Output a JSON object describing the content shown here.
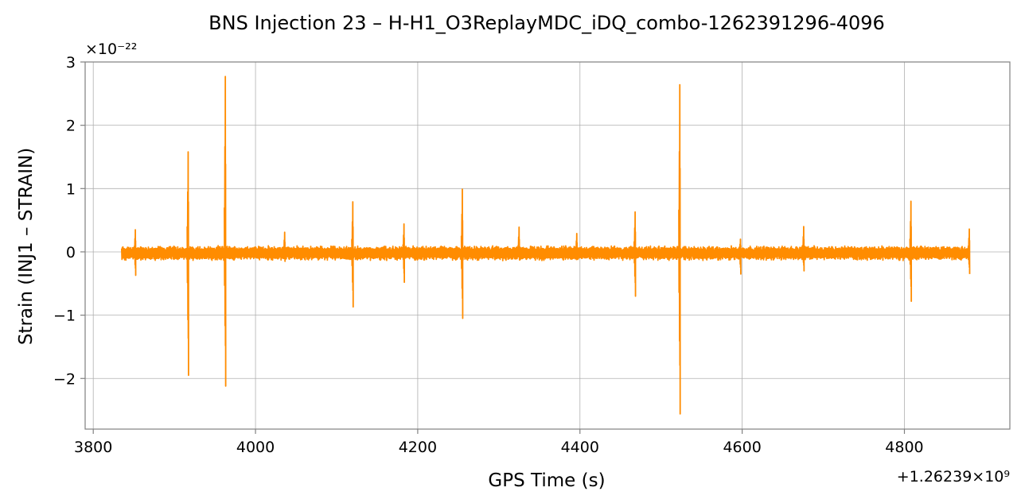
{
  "chart_data": {
    "type": "line",
    "title": "BNS Injection 23 – H-H1_O3ReplayMDC_iDQ_combo-1262391296-4096",
    "xlabel": "GPS Time (s)",
    "ylabel": "Strain (INJ1 – STRAIN)",
    "x_offset_label": "+1.26239×10⁹",
    "y_scale_label": "×10⁻²²",
    "xlim": [
      3790,
      4930
    ],
    "ylim": [
      -2.8,
      3.0
    ],
    "x_ticks": [
      3800,
      4000,
      4200,
      4400,
      4600,
      4800
    ],
    "x_tick_labels": [
      "3800",
      "4000",
      "4200",
      "4400",
      "4600",
      "4800"
    ],
    "y_ticks": [
      -2,
      -1,
      0,
      1,
      2,
      3
    ],
    "y_tick_labels": [
      "−2",
      "−1",
      "0",
      "1",
      "2",
      "3"
    ],
    "grid": true,
    "color": "#ff8c00",
    "series": [
      {
        "x_start": 3835,
        "x_end": 4880,
        "baseline_noise_amplitude": 0.12,
        "spikes": [
          {
            "x": 3852,
            "max": 0.35,
            "min": -0.37
          },
          {
            "x": 3917,
            "max": 1.58,
            "min": -1.95
          },
          {
            "x": 3963,
            "max": 2.77,
            "min": -2.12
          },
          {
            "x": 4036,
            "max": 0.31,
            "min": -0.15
          },
          {
            "x": 4120,
            "max": 0.79,
            "min": -0.87
          },
          {
            "x": 4183,
            "max": 0.44,
            "min": -0.48
          },
          {
            "x": 4255,
            "max": 0.99,
            "min": -1.05
          },
          {
            "x": 4325,
            "max": 0.39,
            "min": -0.12
          },
          {
            "x": 4396,
            "max": 0.29,
            "min": -0.1
          },
          {
            "x": 4468,
            "max": 0.63,
            "min": -0.7
          },
          {
            "x": 4523,
            "max": 2.64,
            "min": -2.56
          },
          {
            "x": 4598,
            "max": 0.2,
            "min": -0.35
          },
          {
            "x": 4676,
            "max": 0.4,
            "min": -0.3
          },
          {
            "x": 4808,
            "max": 0.8,
            "min": -0.78
          },
          {
            "x": 4880,
            "max": 0.36,
            "min": -0.35
          }
        ]
      }
    ]
  }
}
